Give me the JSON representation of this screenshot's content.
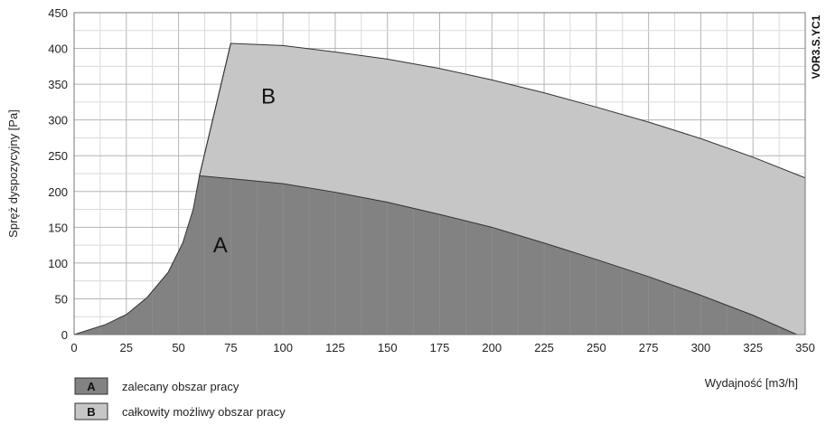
{
  "chart_data": {
    "type": "area",
    "ylabel": "Spręż dyspozycyjny [Pa]",
    "xlabel": "Wydajność [m3/h]",
    "side_label": "VOR3.S.YC1",
    "xlim": [
      0,
      350
    ],
    "ylim": [
      0,
      450
    ],
    "xticks": [
      "0",
      "25",
      "50",
      "75",
      "100",
      "125",
      "150",
      "175",
      "200",
      "225",
      "250",
      "275",
      "300",
      "325",
      "350"
    ],
    "yticks": [
      "0",
      "50",
      "100",
      "150",
      "200",
      "250",
      "300",
      "350",
      "400",
      "450"
    ],
    "grid": true,
    "series": [
      {
        "name": "B",
        "description": "całkowity możliwy obszar pracy",
        "color": "#c6c6c6",
        "upper": [
          [
            60,
            222
          ],
          [
            75,
            407
          ],
          [
            100,
            404
          ],
          [
            125,
            395
          ],
          [
            150,
            385
          ],
          [
            175,
            372
          ],
          [
            200,
            356
          ],
          [
            225,
            338
          ],
          [
            250,
            318
          ],
          [
            275,
            297
          ],
          [
            300,
            274
          ],
          [
            325,
            248
          ],
          [
            350,
            219
          ]
        ],
        "lower": [
          [
            60,
            222
          ],
          [
            75,
            218
          ],
          [
            100,
            211
          ],
          [
            125,
            199
          ],
          [
            150,
            185
          ],
          [
            175,
            168
          ],
          [
            200,
            150
          ],
          [
            225,
            128
          ],
          [
            250,
            105
          ],
          [
            275,
            81
          ],
          [
            300,
            55
          ],
          [
            325,
            27
          ],
          [
            346,
            0
          ],
          [
            350,
            0
          ]
        ]
      },
      {
        "name": "A",
        "description": "zalecany obszar pracy",
        "color": "#828282",
        "upper": [
          [
            0,
            0
          ],
          [
            15,
            14
          ],
          [
            25,
            28
          ],
          [
            35,
            52
          ],
          [
            45,
            87
          ],
          [
            52,
            128
          ],
          [
            57,
            175
          ],
          [
            60,
            222
          ],
          [
            75,
            218
          ],
          [
            100,
            211
          ],
          [
            125,
            199
          ],
          [
            150,
            185
          ],
          [
            175,
            168
          ],
          [
            200,
            150
          ],
          [
            225,
            128
          ],
          [
            250,
            105
          ],
          [
            275,
            81
          ],
          [
            300,
            55
          ],
          [
            325,
            27
          ],
          [
            346,
            0
          ]
        ]
      }
    ],
    "region_labels": [
      {
        "text": "A",
        "x": 70,
        "y": 115
      },
      {
        "text": "B",
        "x": 93,
        "y": 323
      }
    ],
    "legend": {
      "position": "bottom-left",
      "items": [
        {
          "key": "A",
          "label": "zalecany obszar pracy",
          "color": "#828282"
        },
        {
          "key": "B",
          "label": "całkowity możliwy obszar pracy",
          "color": "#c6c6c6"
        }
      ]
    }
  }
}
